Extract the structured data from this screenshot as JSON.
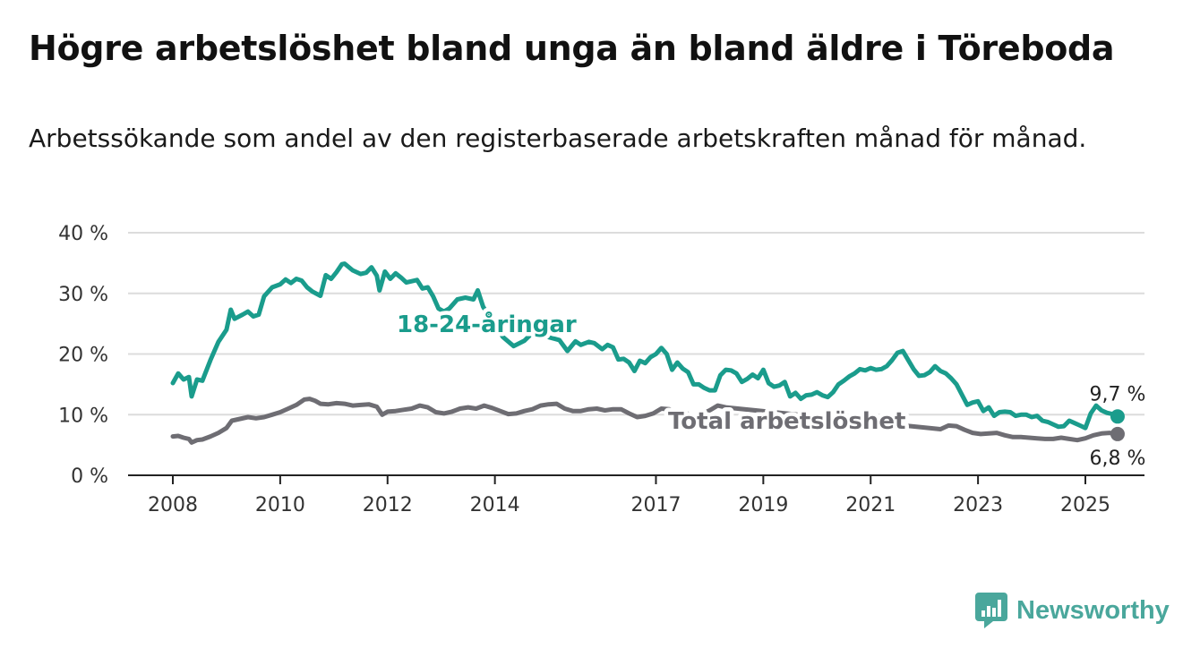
{
  "title": "Högre arbetslöshet bland unga än bland äldre i Töreboda",
  "subtitle": "Arbetssökande som andel av den registerbaserade arbetskraften månad för månad.",
  "brand": {
    "name": "Newsworthy",
    "icon": "bar-chart-icon",
    "color": "#4aa79c"
  },
  "chart_data": {
    "type": "line",
    "xlim": [
      2008.0,
      2025.6
    ],
    "ylim": [
      0,
      40
    ],
    "y_ticks": [
      0,
      10,
      20,
      30,
      40
    ],
    "y_tick_labels": [
      "0 %",
      "10 %",
      "20 %",
      "30 %",
      "40 %"
    ],
    "x_ticks": [
      2008,
      2010,
      2012,
      2014,
      2017,
      2019,
      2021,
      2023,
      2025
    ],
    "x_tick_labels": [
      "2008",
      "2010",
      "2012",
      "2014",
      "2017",
      "2019",
      "2021",
      "2023",
      "2025"
    ],
    "grid": true,
    "series": [
      {
        "name": "18-24-åringar",
        "color": "#1a9c8c",
        "end_label": "9,7 %",
        "points": [
          [
            2008.0,
            15.2
          ],
          [
            2008.1,
            16.8
          ],
          [
            2008.2,
            15.8
          ],
          [
            2008.3,
            16.2
          ],
          [
            2008.35,
            13.0
          ],
          [
            2008.45,
            15.8
          ],
          [
            2008.55,
            15.6
          ],
          [
            2008.7,
            19.0
          ],
          [
            2008.85,
            22.0
          ],
          [
            2009.0,
            24.0
          ],
          [
            2009.08,
            27.3
          ],
          [
            2009.15,
            25.8
          ],
          [
            2009.3,
            26.5
          ],
          [
            2009.4,
            27.0
          ],
          [
            2009.5,
            26.2
          ],
          [
            2009.6,
            26.5
          ],
          [
            2009.7,
            29.5
          ],
          [
            2009.85,
            31.0
          ],
          [
            2010.0,
            31.5
          ],
          [
            2010.1,
            32.3
          ],
          [
            2010.2,
            31.7
          ],
          [
            2010.3,
            32.4
          ],
          [
            2010.4,
            32.1
          ],
          [
            2010.5,
            31.0
          ],
          [
            2010.6,
            30.3
          ],
          [
            2010.75,
            29.6
          ],
          [
            2010.85,
            33.0
          ],
          [
            2010.95,
            32.4
          ],
          [
            2011.05,
            33.5
          ],
          [
            2011.15,
            34.8
          ],
          [
            2011.2,
            34.9
          ],
          [
            2011.35,
            33.8
          ],
          [
            2011.5,
            33.2
          ],
          [
            2011.6,
            33.4
          ],
          [
            2011.7,
            34.3
          ],
          [
            2011.8,
            32.9
          ],
          [
            2011.85,
            30.5
          ],
          [
            2011.95,
            33.6
          ],
          [
            2012.05,
            32.4
          ],
          [
            2012.15,
            33.3
          ],
          [
            2012.25,
            32.6
          ],
          [
            2012.35,
            31.8
          ],
          [
            2012.45,
            32.0
          ],
          [
            2012.55,
            32.2
          ],
          [
            2012.65,
            30.8
          ],
          [
            2012.75,
            31.0
          ],
          [
            2012.85,
            29.5
          ],
          [
            2012.95,
            27.5
          ],
          [
            2013.05,
            27.0
          ],
          [
            2013.15,
            27.5
          ],
          [
            2013.3,
            29.0
          ],
          [
            2013.45,
            29.3
          ],
          [
            2013.6,
            29.0
          ],
          [
            2013.68,
            30.5
          ],
          [
            2013.78,
            27.8
          ],
          [
            2014.15,
            22.8
          ],
          [
            2014.35,
            21.3
          ],
          [
            2014.55,
            22.2
          ],
          [
            2014.7,
            23.5
          ],
          [
            2015.2,
            22.3
          ],
          [
            2015.35,
            20.5
          ],
          [
            2015.5,
            22.1
          ],
          [
            2015.6,
            21.5
          ],
          [
            2015.75,
            22.0
          ],
          [
            2015.85,
            21.8
          ],
          [
            2016.0,
            20.8
          ],
          [
            2016.1,
            21.5
          ],
          [
            2016.2,
            21.1
          ],
          [
            2016.3,
            19.1
          ],
          [
            2016.4,
            19.2
          ],
          [
            2016.5,
            18.6
          ],
          [
            2016.6,
            17.2
          ],
          [
            2016.7,
            18.9
          ],
          [
            2016.8,
            18.5
          ],
          [
            2016.9,
            19.5
          ],
          [
            2017.0,
            20.0
          ],
          [
            2017.1,
            21.0
          ],
          [
            2017.2,
            20.0
          ],
          [
            2017.3,
            17.4
          ],
          [
            2017.4,
            18.6
          ],
          [
            2017.5,
            17.6
          ],
          [
            2017.6,
            17.0
          ],
          [
            2017.7,
            15.0
          ],
          [
            2017.8,
            15.0
          ],
          [
            2017.9,
            14.4
          ],
          [
            2018.0,
            14.0
          ],
          [
            2018.1,
            14.0
          ],
          [
            2018.2,
            16.5
          ],
          [
            2018.3,
            17.4
          ],
          [
            2018.4,
            17.3
          ],
          [
            2018.5,
            16.8
          ],
          [
            2018.6,
            15.4
          ],
          [
            2018.7,
            15.9
          ],
          [
            2018.8,
            16.6
          ],
          [
            2018.9,
            16.0
          ],
          [
            2019.0,
            17.4
          ],
          [
            2019.1,
            15.2
          ],
          [
            2019.2,
            14.6
          ],
          [
            2019.3,
            14.8
          ],
          [
            2019.4,
            15.4
          ],
          [
            2019.5,
            13.0
          ],
          [
            2019.6,
            13.6
          ],
          [
            2019.7,
            12.6
          ],
          [
            2019.8,
            13.2
          ],
          [
            2019.9,
            13.3
          ],
          [
            2020.0,
            13.7
          ],
          [
            2020.1,
            13.2
          ],
          [
            2020.2,
            12.9
          ],
          [
            2020.3,
            13.7
          ],
          [
            2020.4,
            15.0
          ],
          [
            2020.5,
            15.6
          ],
          [
            2020.6,
            16.3
          ],
          [
            2020.7,
            16.8
          ],
          [
            2020.8,
            17.5
          ],
          [
            2020.9,
            17.3
          ],
          [
            2021.0,
            17.7
          ],
          [
            2021.1,
            17.4
          ],
          [
            2021.2,
            17.5
          ],
          [
            2021.3,
            18.0
          ],
          [
            2021.4,
            19.0
          ],
          [
            2021.5,
            20.2
          ],
          [
            2021.6,
            20.5
          ],
          [
            2021.7,
            19.0
          ],
          [
            2021.8,
            17.5
          ],
          [
            2021.9,
            16.4
          ],
          [
            2022.0,
            16.5
          ],
          [
            2022.1,
            17.0
          ],
          [
            2022.2,
            18.0
          ],
          [
            2022.3,
            17.2
          ],
          [
            2022.4,
            16.8
          ],
          [
            2022.5,
            16.0
          ],
          [
            2022.6,
            15.0
          ],
          [
            2022.7,
            13.3
          ],
          [
            2022.8,
            11.6
          ],
          [
            2022.9,
            12.0
          ],
          [
            2023.0,
            12.2
          ],
          [
            2023.1,
            10.6
          ],
          [
            2023.2,
            11.2
          ],
          [
            2023.3,
            9.8
          ],
          [
            2023.4,
            10.4
          ],
          [
            2023.5,
            10.5
          ],
          [
            2023.6,
            10.4
          ],
          [
            2023.7,
            9.8
          ],
          [
            2023.8,
            10.0
          ],
          [
            2023.9,
            10.0
          ],
          [
            2024.0,
            9.6
          ],
          [
            2024.1,
            9.8
          ],
          [
            2024.2,
            9.0
          ],
          [
            2024.3,
            8.8
          ],
          [
            2024.4,
            8.4
          ],
          [
            2024.5,
            8.0
          ],
          [
            2024.6,
            8.1
          ],
          [
            2024.7,
            9.0
          ],
          [
            2024.8,
            8.6
          ],
          [
            2024.9,
            8.2
          ],
          [
            2025.0,
            7.8
          ],
          [
            2025.1,
            10.2
          ],
          [
            2025.2,
            11.5
          ],
          [
            2025.3,
            10.7
          ],
          [
            2025.4,
            10.3
          ],
          [
            2025.5,
            10.1
          ],
          [
            2025.6,
            9.7
          ]
        ]
      },
      {
        "name": "Total arbetslöshet",
        "color": "#6e6d73",
        "end_label": "6,8 %",
        "points": [
          [
            2008.0,
            6.4
          ],
          [
            2008.1,
            6.5
          ],
          [
            2008.2,
            6.2
          ],
          [
            2008.3,
            6.0
          ],
          [
            2008.35,
            5.4
          ],
          [
            2008.45,
            5.8
          ],
          [
            2008.55,
            5.9
          ],
          [
            2008.7,
            6.4
          ],
          [
            2008.85,
            7.0
          ],
          [
            2009.0,
            7.8
          ],
          [
            2009.1,
            9.0
          ],
          [
            2009.25,
            9.3
          ],
          [
            2009.4,
            9.6
          ],
          [
            2009.55,
            9.4
          ],
          [
            2009.7,
            9.6
          ],
          [
            2009.85,
            10.0
          ],
          [
            2010.0,
            10.4
          ],
          [
            2010.15,
            11.0
          ],
          [
            2010.3,
            11.6
          ],
          [
            2010.45,
            12.5
          ],
          [
            2010.55,
            12.6
          ],
          [
            2010.65,
            12.3
          ],
          [
            2010.75,
            11.8
          ],
          [
            2010.9,
            11.7
          ],
          [
            2011.05,
            11.9
          ],
          [
            2011.2,
            11.8
          ],
          [
            2011.35,
            11.5
          ],
          [
            2011.5,
            11.6
          ],
          [
            2011.65,
            11.7
          ],
          [
            2011.8,
            11.3
          ],
          [
            2011.9,
            10.0
          ],
          [
            2012.0,
            10.5
          ],
          [
            2012.15,
            10.6
          ],
          [
            2012.3,
            10.8
          ],
          [
            2012.45,
            11.0
          ],
          [
            2012.6,
            11.5
          ],
          [
            2012.75,
            11.2
          ],
          [
            2012.9,
            10.4
          ],
          [
            2013.05,
            10.2
          ],
          [
            2013.2,
            10.5
          ],
          [
            2013.35,
            11.0
          ],
          [
            2013.5,
            11.2
          ],
          [
            2013.65,
            11.0
          ],
          [
            2013.8,
            11.5
          ],
          [
            2013.95,
            11.1
          ],
          [
            2014.1,
            10.6
          ],
          [
            2014.25,
            10.1
          ],
          [
            2014.4,
            10.2
          ],
          [
            2014.55,
            10.6
          ],
          [
            2014.7,
            10.9
          ],
          [
            2014.85,
            11.5
          ],
          [
            2015.0,
            11.7
          ],
          [
            2015.15,
            11.8
          ],
          [
            2015.3,
            11.0
          ],
          [
            2015.45,
            10.6
          ],
          [
            2015.6,
            10.6
          ],
          [
            2015.75,
            10.9
          ],
          [
            2015.9,
            11.0
          ],
          [
            2016.05,
            10.7
          ],
          [
            2016.2,
            10.9
          ],
          [
            2016.35,
            10.9
          ],
          [
            2016.5,
            10.2
          ],
          [
            2016.65,
            9.6
          ],
          [
            2016.8,
            9.8
          ],
          [
            2016.95,
            10.2
          ],
          [
            2017.1,
            11.0
          ],
          [
            2017.25,
            10.9
          ],
          [
            2017.4,
            10.2
          ],
          [
            2017.55,
            10.3
          ],
          [
            2017.7,
            9.7
          ],
          [
            2017.85,
            10.1
          ],
          [
            2018.0,
            10.7
          ],
          [
            2018.15,
            11.5
          ],
          [
            2018.3,
            11.2
          ],
          [
            2022.3,
            7.6
          ],
          [
            2022.45,
            8.2
          ],
          [
            2022.6,
            8.1
          ],
          [
            2022.75,
            7.5
          ],
          [
            2022.9,
            7.0
          ],
          [
            2023.05,
            6.8
          ],
          [
            2023.2,
            6.9
          ],
          [
            2023.35,
            7.0
          ],
          [
            2023.5,
            6.6
          ],
          [
            2023.65,
            6.3
          ],
          [
            2023.8,
            6.3
          ],
          [
            2023.95,
            6.2
          ],
          [
            2024.1,
            6.1
          ],
          [
            2024.25,
            6.0
          ],
          [
            2024.4,
            6.0
          ],
          [
            2024.55,
            6.2
          ],
          [
            2024.7,
            6.0
          ],
          [
            2024.85,
            5.8
          ],
          [
            2025.0,
            6.1
          ],
          [
            2025.15,
            6.6
          ],
          [
            2025.3,
            6.9
          ],
          [
            2025.45,
            7.0
          ],
          [
            2025.6,
            6.8
          ]
        ]
      }
    ]
  }
}
